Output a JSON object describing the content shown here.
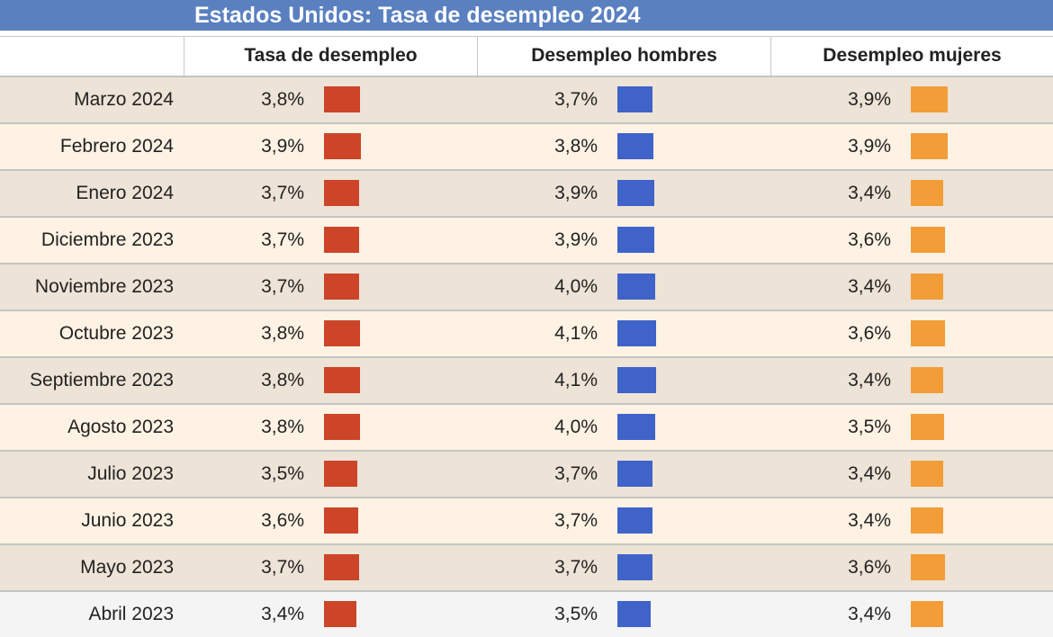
{
  "title": "Estados Unidos: Tasa de desempleo 2024",
  "colors": {
    "title_bg": "#5a80c0",
    "row_odd": "#ede3d6",
    "row_even": "#fdf2e3",
    "series": [
      "#cc4528",
      "#3f63c9",
      "#f29d38"
    ]
  },
  "chart_data": {
    "type": "table",
    "title": "Estados Unidos: Tasa de desempleo 2024",
    "columns": [
      "Tasa de desempleo",
      "Desempleo hombres",
      "Desempleo mujeres"
    ],
    "rows": [
      {
        "label": "Marzo 2024",
        "values": [
          "3,8%",
          "3,7%",
          "3,9%"
        ],
        "numbers": [
          3.8,
          3.7,
          3.9
        ]
      },
      {
        "label": "Febrero 2024",
        "values": [
          "3,9%",
          "3,8%",
          "3,9%"
        ],
        "numbers": [
          3.9,
          3.8,
          3.9
        ]
      },
      {
        "label": "Enero 2024",
        "values": [
          "3,7%",
          "3,9%",
          "3,4%"
        ],
        "numbers": [
          3.7,
          3.9,
          3.4
        ]
      },
      {
        "label": "Diciembre 2023",
        "values": [
          "3,7%",
          "3,9%",
          "3,6%"
        ],
        "numbers": [
          3.7,
          3.9,
          3.6
        ]
      },
      {
        "label": "Noviembre 2023",
        "values": [
          "3,7%",
          "4,0%",
          "3,4%"
        ],
        "numbers": [
          3.7,
          4.0,
          3.4
        ]
      },
      {
        "label": "Octubre 2023",
        "values": [
          "3,8%",
          "4,1%",
          "3,6%"
        ],
        "numbers": [
          3.8,
          4.1,
          3.6
        ]
      },
      {
        "label": "Septiembre 2023",
        "values": [
          "3,8%",
          "4,1%",
          "3,4%"
        ],
        "numbers": [
          3.8,
          4.1,
          3.4
        ]
      },
      {
        "label": "Agosto 2023",
        "values": [
          "3,8%",
          "4,0%",
          "3,5%"
        ],
        "numbers": [
          3.8,
          4.0,
          3.5
        ]
      },
      {
        "label": "Julio 2023",
        "values": [
          "3,5%",
          "3,7%",
          "3,4%"
        ],
        "numbers": [
          3.5,
          3.7,
          3.4
        ]
      },
      {
        "label": "Junio 2023",
        "values": [
          "3,6%",
          "3,7%",
          "3,4%"
        ],
        "numbers": [
          3.6,
          3.7,
          3.4
        ]
      },
      {
        "label": "Mayo 2023",
        "values": [
          "3,7%",
          "3,7%",
          "3,6%"
        ],
        "numbers": [
          3.7,
          3.7,
          3.6
        ]
      },
      {
        "label": "Abril 2023",
        "values": [
          "3,4%",
          "3,5%",
          "3,4%"
        ],
        "numbers": [
          3.4,
          3.5,
          3.4
        ]
      }
    ]
  }
}
